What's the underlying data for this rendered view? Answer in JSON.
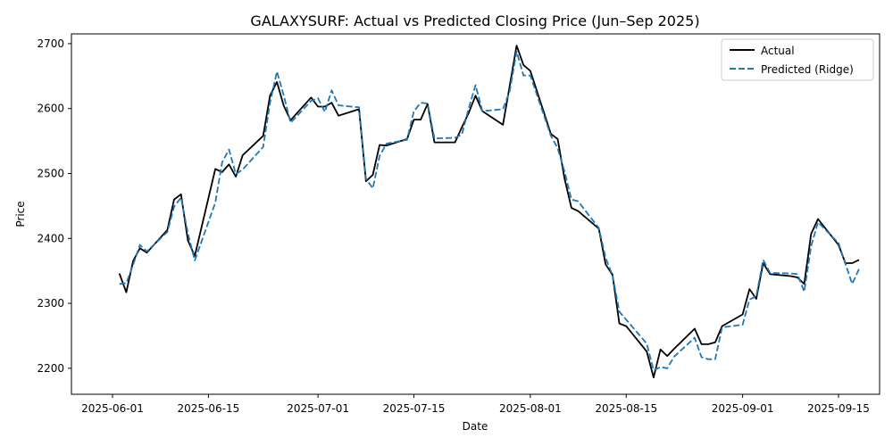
{
  "chart_data": {
    "type": "line",
    "title": "GALAXYSURF: Actual vs Predicted Closing Price (Jun–Sep 2025)",
    "xlabel": "Date",
    "ylabel": "Price",
    "xlim": [
      "2025-05-26",
      "2025-09-21"
    ],
    "ylim": [
      2160,
      2715
    ],
    "x_ticks": [
      "2025-06-01",
      "2025-06-15",
      "2025-07-01",
      "2025-07-15",
      "2025-08-01",
      "2025-08-15",
      "2025-09-01",
      "2025-09-15"
    ],
    "y_ticks": [
      2200,
      2300,
      2400,
      2500,
      2600,
      2700
    ],
    "grid": false,
    "legend_position": "top-right",
    "dates": [
      "2025-06-02",
      "2025-06-03",
      "2025-06-04",
      "2025-06-05",
      "2025-06-06",
      "2025-06-09",
      "2025-06-10",
      "2025-06-11",
      "2025-06-12",
      "2025-06-13",
      "2025-06-16",
      "2025-06-17",
      "2025-06-18",
      "2025-06-19",
      "2025-06-20",
      "2025-06-23",
      "2025-06-24",
      "2025-06-25",
      "2025-06-26",
      "2025-06-27",
      "2025-06-30",
      "2025-07-01",
      "2025-07-02",
      "2025-07-03",
      "2025-07-04",
      "2025-07-07",
      "2025-07-08",
      "2025-07-09",
      "2025-07-10",
      "2025-07-11",
      "2025-07-14",
      "2025-07-15",
      "2025-07-16",
      "2025-07-17",
      "2025-07-18",
      "2025-07-21",
      "2025-07-22",
      "2025-07-23",
      "2025-07-24",
      "2025-07-25",
      "2025-07-28",
      "2025-07-29",
      "2025-07-30",
      "2025-07-31",
      "2025-08-01",
      "2025-08-04",
      "2025-08-05",
      "2025-08-06",
      "2025-08-07",
      "2025-08-08",
      "2025-08-11",
      "2025-08-12",
      "2025-08-13",
      "2025-08-14",
      "2025-08-15",
      "2025-08-18",
      "2025-08-19",
      "2025-08-20",
      "2025-08-21",
      "2025-08-22",
      "2025-08-25",
      "2025-08-26",
      "2025-08-27",
      "2025-08-28",
      "2025-08-29",
      "2025-09-01",
      "2025-09-02",
      "2025-09-03",
      "2025-09-04",
      "2025-09-05",
      "2025-09-08",
      "2025-09-09",
      "2025-09-10",
      "2025-09-11",
      "2025-09-12",
      "2025-09-15",
      "2025-09-16",
      "2025-09-17",
      "2025-09-18"
    ],
    "series": [
      {
        "name": "Actual",
        "color": "#000000",
        "style": "solid",
        "values": [
          2346,
          2317,
          2365,
          2385,
          2378,
          2413,
          2460,
          2468,
          2397,
          2373,
          2507,
          2502,
          2514,
          2495,
          2528,
          2558,
          2620,
          2641,
          2604,
          2582,
          2617,
          2603,
          2603,
          2609,
          2589,
          2599,
          2488,
          2498,
          2544,
          2543,
          2553,
          2583,
          2583,
          2607,
          2548,
          2548,
          2571,
          2593,
          2620,
          2596,
          2575,
          2635,
          2697,
          2667,
          2658,
          2561,
          2553,
          2492,
          2447,
          2442,
          2415,
          2360,
          2344,
          2269,
          2265,
          2226,
          2186,
          2229,
          2219,
          2230,
          2261,
          2237,
          2237,
          2240,
          2265,
          2283,
          2322,
          2307,
          2362,
          2345,
          2342,
          2340,
          2330,
          2407,
          2430,
          2390,
          2362,
          2362,
          2367
        ]
      },
      {
        "name": "Predicted (Ridge)",
        "color": "#1f77b4",
        "style": "dashed",
        "values": [
          2330,
          2331,
          2359,
          2390,
          2380,
          2410,
          2449,
          2463,
          2408,
          2366,
          2455,
          2517,
          2537,
          2499,
          2506,
          2541,
          2609,
          2657,
          2620,
          2578,
          2612,
          2616,
          2595,
          2628,
          2605,
          2602,
          2492,
          2477,
          2527,
          2546,
          2552,
          2596,
          2609,
          2608,
          2554,
          2555,
          2560,
          2600,
          2636,
          2596,
          2599,
          2627,
          2688,
          2651,
          2651,
          2558,
          2539,
          2503,
          2460,
          2457,
          2416,
          2370,
          2343,
          2287,
          2275,
          2238,
          2197,
          2202,
          2200,
          2218,
          2247,
          2217,
          2214,
          2214,
          2263,
          2267,
          2306,
          2311,
          2367,
          2347,
          2346,
          2345,
          2318,
          2388,
          2425,
          2393,
          2361,
          2330,
          2353
        ]
      }
    ]
  }
}
